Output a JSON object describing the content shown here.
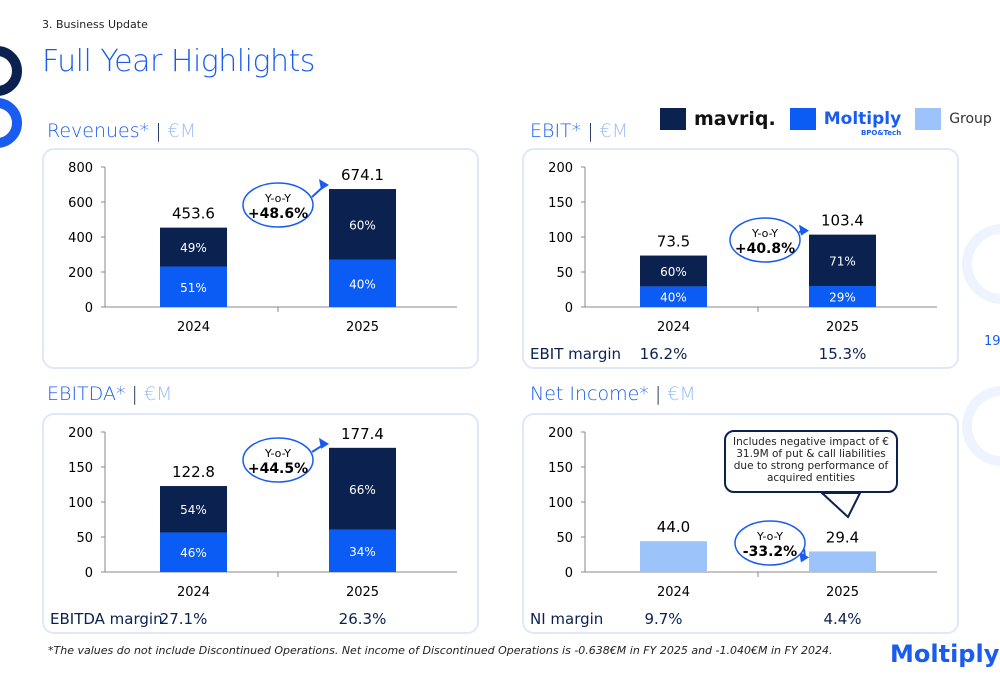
{
  "header": {
    "section": "3. Business Update",
    "title": "Full Year Highlights",
    "page_number": "19"
  },
  "legend": [
    {
      "label": "mavriq.",
      "color": "#0b2150",
      "kind": "logo"
    },
    {
      "label": "Moltiply",
      "sub": "BPO&Tech",
      "color": "#0a5cf5",
      "kind": "logo"
    },
    {
      "label": "Group",
      "color": "#9dc3fb",
      "kind": "text"
    }
  ],
  "colors": {
    "mavriq": "#0b2150",
    "moltiply": "#0a5cf5",
    "group": "#9dc3fb",
    "accent": "#1a5cf0"
  },
  "chart_data": [
    {
      "id": "revenues",
      "type": "bar",
      "stacked": true,
      "title": "Revenues*",
      "unit": "€M",
      "ylim": [
        0,
        800
      ],
      "ticks": [
        0,
        200,
        400,
        600,
        800
      ],
      "categories": [
        "2024",
        "2025"
      ],
      "totals": [
        453.6,
        674.1
      ],
      "total_labels": [
        "453.6",
        "674.1"
      ],
      "series": [
        {
          "name": "Moltiply",
          "share": [
            51,
            40
          ],
          "labels": [
            "51%",
            "40%"
          ]
        },
        {
          "name": "mavriq.",
          "share": [
            49,
            60
          ],
          "labels": [
            "49%",
            "60%"
          ]
        }
      ],
      "yoy": {
        "label": "Y-o-Y",
        "value": "+48.6%"
      }
    },
    {
      "id": "ebit",
      "type": "bar",
      "stacked": true,
      "title": "EBIT*",
      "unit": "€M",
      "ylim": [
        0,
        200
      ],
      "ticks": [
        0,
        50,
        100,
        150,
        200
      ],
      "categories": [
        "2024",
        "2025"
      ],
      "totals": [
        73.5,
        103.4
      ],
      "total_labels": [
        "73.5",
        "103.4"
      ],
      "series": [
        {
          "name": "Moltiply",
          "share": [
            40,
            29
          ],
          "labels": [
            "40%",
            "29%"
          ]
        },
        {
          "name": "mavriq.",
          "share": [
            60,
            71
          ],
          "labels": [
            "60%",
            "71%"
          ]
        }
      ],
      "yoy": {
        "label": "Y-o-Y",
        "value": "+40.8%"
      },
      "margin": {
        "label": "EBIT margin",
        "values": [
          "16.2%",
          "15.3%"
        ]
      }
    },
    {
      "id": "ebitda",
      "type": "bar",
      "stacked": true,
      "title": "EBITDA*",
      "unit": "€M",
      "ylim": [
        0,
        200
      ],
      "ticks": [
        0,
        50,
        100,
        150,
        200
      ],
      "categories": [
        "2024",
        "2025"
      ],
      "totals": [
        122.8,
        177.4
      ],
      "total_labels": [
        "122.8",
        "177.4"
      ],
      "series": [
        {
          "name": "Moltiply",
          "share": [
            46,
            34
          ],
          "labels": [
            "46%",
            "34%"
          ]
        },
        {
          "name": "mavriq.",
          "share": [
            54,
            66
          ],
          "labels": [
            "54%",
            "66%"
          ]
        }
      ],
      "yoy": {
        "label": "Y-o-Y",
        "value": "+44.5%"
      },
      "margin": {
        "label": "EBITDA margin",
        "values": [
          "27.1%",
          "26.3%"
        ]
      }
    },
    {
      "id": "net-income",
      "type": "bar",
      "stacked": false,
      "title": "Net Income*",
      "unit": "€M",
      "ylim": [
        0,
        200
      ],
      "ticks": [
        0,
        50,
        100,
        150,
        200
      ],
      "categories": [
        "2024",
        "2025"
      ],
      "totals": [
        44.0,
        29.4
      ],
      "total_labels": [
        "44.0",
        "29.4"
      ],
      "series": [
        {
          "name": "Group",
          "share": [
            100,
            100
          ],
          "labels": [
            "",
            ""
          ]
        }
      ],
      "yoy": {
        "label": "Y-o-Y",
        "value": "-33.2%"
      },
      "margin": {
        "label": "NI margin",
        "values": [
          "9.7%",
          "4.4%"
        ]
      },
      "note": "Includes negative impact of € 31.9M of put & call liabilities due to strong performance of acquired entities"
    }
  ],
  "footnote": "*The values do not include Discontinued Operations. Net income of Discontinued Operations is -0.638€M in FY 2025 and -1.040€M in FY 2024.",
  "brand": "Moltiply"
}
